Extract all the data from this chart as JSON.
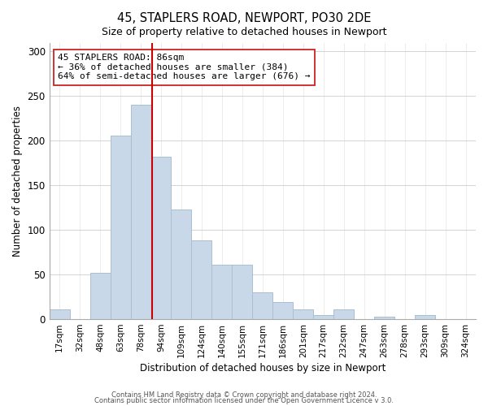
{
  "title": "45, STAPLERS ROAD, NEWPORT, PO30 2DE",
  "subtitle": "Size of property relative to detached houses in Newport",
  "xlabel": "Distribution of detached houses by size in Newport",
  "ylabel": "Number of detached properties",
  "bar_color": "#c8d8e8",
  "bar_edge_color": "#aabfcf",
  "categories": [
    "17sqm",
    "32sqm",
    "48sqm",
    "63sqm",
    "78sqm",
    "94sqm",
    "109sqm",
    "124sqm",
    "140sqm",
    "155sqm",
    "171sqm",
    "186sqm",
    "201sqm",
    "217sqm",
    "232sqm",
    "247sqm",
    "263sqm",
    "278sqm",
    "293sqm",
    "309sqm",
    "324sqm"
  ],
  "values": [
    11,
    0,
    52,
    206,
    240,
    182,
    123,
    88,
    61,
    61,
    30,
    19,
    11,
    5,
    11,
    0,
    3,
    0,
    5,
    0,
    0
  ],
  "vline_color": "#cc0000",
  "annotation_text": "45 STAPLERS ROAD: 86sqm\n← 36% of detached houses are smaller (384)\n64% of semi-detached houses are larger (676) →",
  "ylim": [
    0,
    310
  ],
  "yticks": [
    0,
    50,
    100,
    150,
    200,
    250,
    300
  ],
  "footnote1": "Contains HM Land Registry data © Crown copyright and database right 2024.",
  "footnote2": "Contains public sector information licensed under the Open Government Licence v 3.0."
}
